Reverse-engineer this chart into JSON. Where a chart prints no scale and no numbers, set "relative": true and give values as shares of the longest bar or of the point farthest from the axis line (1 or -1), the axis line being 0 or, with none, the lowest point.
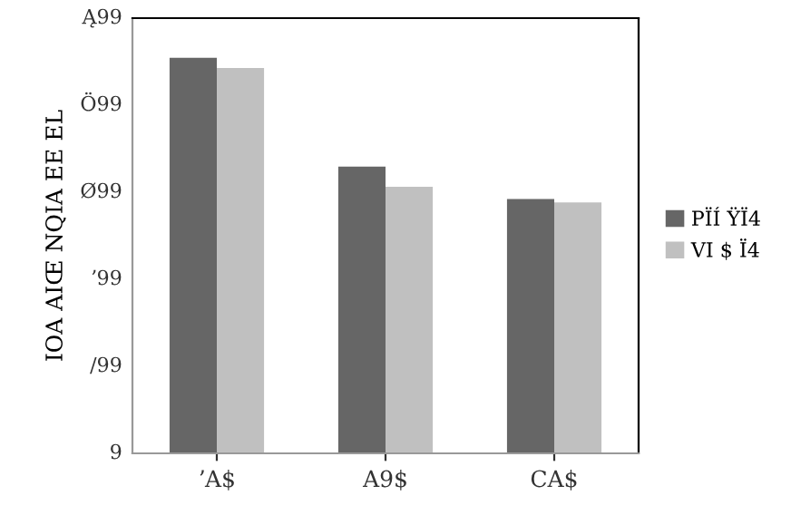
{
  "chart_data": {
    "type": "bar",
    "relative": true,
    "ylabel": "IOA AIŒ NQIA EE EL",
    "categories": [
      "ʼA$",
      "A9$",
      "CA$"
    ],
    "series": [
      {
        "name": "PÏÍ ŸÏ4",
        "color": "#666666",
        "values": [
          1,
          0.725,
          0.643
        ]
      },
      {
        "name": "VI $ Ï4",
        "color": "#c0c0c0",
        "values": [
          0.974,
          0.674,
          0.634
        ]
      }
    ],
    "annotations": [
      "9",
      "/99",
      "ʼ99",
      "Ø99",
      "Ö99",
      "Ą99"
    ],
    "grid": false,
    "legend": "right"
  }
}
